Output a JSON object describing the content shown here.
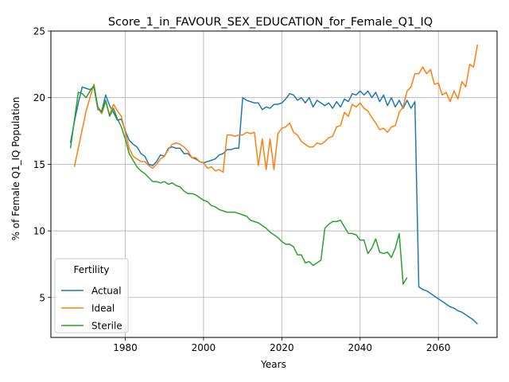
{
  "chart_data": {
    "type": "line",
    "title": "Score_1_in_FAVOUR_SEX_EDUCATION_for_Female_Q1_IQ",
    "xlabel": "Years",
    "ylabel": "% of Female Q1_IQ Population",
    "xlim": [
      1961,
      2075
    ],
    "ylim": [
      2,
      25
    ],
    "xticks": [
      1980,
      2000,
      2020,
      2040,
      2060
    ],
    "yticks": [
      5,
      10,
      15,
      20,
      25
    ],
    "grid": true,
    "legend": {
      "title": "Fertility",
      "position": "lower-left"
    },
    "series": [
      {
        "name": "Actual",
        "color": "#1f77b4",
        "points": [
          [
            1966,
            16.6
          ],
          [
            1967,
            18.2
          ],
          [
            1968,
            19.6
          ],
          [
            1969,
            20.8
          ],
          [
            1970,
            20.7
          ],
          [
            1971,
            20.6
          ],
          [
            1972,
            20.8
          ],
          [
            1973,
            19.1
          ],
          [
            1974,
            19.0
          ],
          [
            1975,
            20.2
          ],
          [
            1976,
            19.4
          ],
          [
            1977,
            18.9
          ],
          [
            1978,
            18.3
          ],
          [
            1979,
            18.4
          ],
          [
            1980,
            17.5
          ],
          [
            1981,
            16.8
          ],
          [
            1982,
            16.5
          ],
          [
            1983,
            16.3
          ],
          [
            1984,
            15.8
          ],
          [
            1985,
            15.6
          ],
          [
            1986,
            15.0
          ],
          [
            1987,
            14.9
          ],
          [
            1988,
            15.2
          ],
          [
            1989,
            15.7
          ],
          [
            1990,
            15.6
          ],
          [
            1991,
            16.2
          ],
          [
            1992,
            16.3
          ],
          [
            1993,
            16.2
          ],
          [
            1994,
            16.2
          ],
          [
            1995,
            15.8
          ],
          [
            1996,
            15.8
          ],
          [
            1997,
            15.5
          ],
          [
            1998,
            15.4
          ],
          [
            1999,
            15.2
          ],
          [
            2000,
            15.1
          ],
          [
            2001,
            15.2
          ],
          [
            2002,
            15.3
          ],
          [
            2003,
            15.4
          ],
          [
            2004,
            15.7
          ],
          [
            2005,
            15.8
          ],
          [
            2006,
            16.1
          ],
          [
            2007,
            16.1
          ],
          [
            2008,
            16.2
          ],
          [
            2009,
            16.2
          ],
          [
            2010,
            20.0
          ],
          [
            2011,
            19.8
          ],
          [
            2012,
            19.7
          ],
          [
            2013,
            19.6
          ],
          [
            2014,
            19.6
          ],
          [
            2015,
            19.1
          ],
          [
            2016,
            19.3
          ],
          [
            2017,
            19.2
          ],
          [
            2018,
            19.5
          ],
          [
            2019,
            19.5
          ],
          [
            2020,
            19.6
          ],
          [
            2021,
            19.9
          ],
          [
            2022,
            20.3
          ],
          [
            2023,
            20.2
          ],
          [
            2024,
            19.8
          ],
          [
            2025,
            20.0
          ],
          [
            2026,
            19.6
          ],
          [
            2027,
            20.0
          ],
          [
            2028,
            19.3
          ],
          [
            2029,
            19.8
          ],
          [
            2030,
            19.6
          ],
          [
            2031,
            19.4
          ],
          [
            2032,
            19.6
          ],
          [
            2033,
            19.2
          ],
          [
            2034,
            19.7
          ],
          [
            2035,
            19.3
          ],
          [
            2036,
            19.9
          ],
          [
            2037,
            19.7
          ],
          [
            2038,
            20.3
          ],
          [
            2039,
            20.2
          ],
          [
            2040,
            20.5
          ],
          [
            2041,
            20.2
          ],
          [
            2042,
            20.5
          ],
          [
            2043,
            20.0
          ],
          [
            2044,
            20.4
          ],
          [
            2045,
            19.7
          ],
          [
            2046,
            20.2
          ],
          [
            2047,
            19.4
          ],
          [
            2048,
            20.0
          ],
          [
            2049,
            19.3
          ],
          [
            2050,
            19.8
          ],
          [
            2051,
            19.2
          ],
          [
            2052,
            19.8
          ],
          [
            2053,
            19.2
          ],
          [
            2054,
            19.7
          ],
          [
            2055,
            5.8
          ],
          [
            2056,
            5.6
          ],
          [
            2057,
            5.5
          ],
          [
            2058,
            5.3
          ],
          [
            2059,
            5.1
          ],
          [
            2060,
            4.9
          ],
          [
            2061,
            4.7
          ],
          [
            2062,
            4.5
          ],
          [
            2063,
            4.3
          ],
          [
            2064,
            4.2
          ],
          [
            2065,
            4.0
          ],
          [
            2066,
            3.9
          ],
          [
            2067,
            3.7
          ],
          [
            2068,
            3.5
          ],
          [
            2069,
            3.3
          ],
          [
            2070,
            3.0
          ]
        ]
      },
      {
        "name": "Ideal",
        "color": "#ff7f0e",
        "points": [
          [
            1967,
            14.8
          ],
          [
            1968,
            16.2
          ],
          [
            1969,
            17.6
          ],
          [
            1970,
            19.0
          ],
          [
            1971,
            20.0
          ],
          [
            1972,
            21.0
          ],
          [
            1973,
            19.2
          ],
          [
            1974,
            18.8
          ],
          [
            1975,
            19.7
          ],
          [
            1976,
            18.7
          ],
          [
            1977,
            19.5
          ],
          [
            1978,
            19.0
          ],
          [
            1979,
            18.6
          ],
          [
            1980,
            17.4
          ],
          [
            1981,
            16.2
          ],
          [
            1982,
            15.6
          ],
          [
            1983,
            15.4
          ],
          [
            1984,
            15.2
          ],
          [
            1985,
            15.2
          ],
          [
            1986,
            14.9
          ],
          [
            1987,
            14.7
          ],
          [
            1988,
            15.0
          ],
          [
            1989,
            15.4
          ],
          [
            1990,
            15.6
          ],
          [
            1991,
            16.1
          ],
          [
            1992,
            16.5
          ],
          [
            1993,
            16.6
          ],
          [
            1994,
            16.5
          ],
          [
            1995,
            16.3
          ],
          [
            1996,
            16.0
          ],
          [
            1997,
            15.5
          ],
          [
            1998,
            15.5
          ],
          [
            1999,
            15.2
          ],
          [
            2000,
            15.1
          ],
          [
            2001,
            14.7
          ],
          [
            2002,
            14.8
          ],
          [
            2003,
            14.5
          ],
          [
            2004,
            14.6
          ],
          [
            2005,
            14.4
          ],
          [
            2006,
            17.2
          ],
          [
            2007,
            17.2
          ],
          [
            2008,
            17.1
          ],
          [
            2009,
            17.2
          ],
          [
            2010,
            17.2
          ],
          [
            2011,
            17.4
          ],
          [
            2012,
            17.3
          ],
          [
            2013,
            17.4
          ],
          [
            2014,
            14.9
          ],
          [
            2015,
            16.9
          ],
          [
            2016,
            14.6
          ],
          [
            2017,
            16.9
          ],
          [
            2018,
            14.6
          ],
          [
            2019,
            17.3
          ],
          [
            2020,
            17.7
          ],
          [
            2021,
            17.8
          ],
          [
            2022,
            18.1
          ],
          [
            2023,
            17.4
          ],
          [
            2024,
            17.2
          ],
          [
            2025,
            16.7
          ],
          [
            2026,
            16.5
          ],
          [
            2027,
            16.3
          ],
          [
            2028,
            16.3
          ],
          [
            2029,
            16.6
          ],
          [
            2030,
            16.5
          ],
          [
            2031,
            16.7
          ],
          [
            2032,
            17.0
          ],
          [
            2033,
            17.1
          ],
          [
            2034,
            17.8
          ],
          [
            2035,
            17.9
          ],
          [
            2036,
            18.9
          ],
          [
            2037,
            18.6
          ],
          [
            2038,
            19.5
          ],
          [
            2039,
            19.3
          ],
          [
            2040,
            19.6
          ],
          [
            2041,
            19.2
          ],
          [
            2042,
            19.0
          ],
          [
            2043,
            18.5
          ],
          [
            2044,
            18.1
          ],
          [
            2045,
            17.6
          ],
          [
            2046,
            17.7
          ],
          [
            2047,
            17.4
          ],
          [
            2048,
            17.8
          ],
          [
            2049,
            17.9
          ],
          [
            2050,
            18.9
          ],
          [
            2051,
            19.3
          ],
          [
            2052,
            20.5
          ],
          [
            2053,
            20.8
          ],
          [
            2054,
            21.8
          ],
          [
            2055,
            21.8
          ],
          [
            2056,
            22.3
          ],
          [
            2057,
            21.8
          ],
          [
            2058,
            22.1
          ],
          [
            2059,
            21.0
          ],
          [
            2060,
            21.1
          ],
          [
            2061,
            20.2
          ],
          [
            2062,
            20.4
          ],
          [
            2063,
            19.7
          ],
          [
            2064,
            20.5
          ],
          [
            2065,
            19.9
          ],
          [
            2066,
            21.2
          ],
          [
            2067,
            20.8
          ],
          [
            2068,
            22.5
          ],
          [
            2069,
            22.3
          ],
          [
            2070,
            24.0
          ]
        ]
      },
      {
        "name": "Sterile",
        "color": "#2ca02c",
        "points": [
          [
            1966,
            16.2
          ],
          [
            1967,
            18.3
          ],
          [
            1968,
            20.4
          ],
          [
            1969,
            20.3
          ],
          [
            1970,
            20.0
          ],
          [
            1971,
            20.5
          ],
          [
            1972,
            20.9
          ],
          [
            1973,
            19.3
          ],
          [
            1974,
            18.9
          ],
          [
            1975,
            19.8
          ],
          [
            1976,
            18.6
          ],
          [
            1977,
            19.2
          ],
          [
            1978,
            18.4
          ],
          [
            1979,
            17.8
          ],
          [
            1980,
            16.9
          ],
          [
            1981,
            15.8
          ],
          [
            1982,
            15.3
          ],
          [
            1983,
            14.8
          ],
          [
            1984,
            14.5
          ],
          [
            1985,
            14.3
          ],
          [
            1986,
            14.0
          ],
          [
            1987,
            13.7
          ],
          [
            1988,
            13.7
          ],
          [
            1989,
            13.6
          ],
          [
            1990,
            13.7
          ],
          [
            1991,
            13.5
          ],
          [
            1992,
            13.6
          ],
          [
            1993,
            13.4
          ],
          [
            1994,
            13.3
          ],
          [
            1995,
            13.0
          ],
          [
            1996,
            12.8
          ],
          [
            1997,
            12.8
          ],
          [
            1998,
            12.7
          ],
          [
            1999,
            12.5
          ],
          [
            2000,
            12.3
          ],
          [
            2001,
            12.2
          ],
          [
            2002,
            11.9
          ],
          [
            2003,
            11.8
          ],
          [
            2004,
            11.6
          ],
          [
            2005,
            11.5
          ],
          [
            2006,
            11.4
          ],
          [
            2007,
            11.4
          ],
          [
            2008,
            11.4
          ],
          [
            2009,
            11.3
          ],
          [
            2010,
            11.2
          ],
          [
            2011,
            11.1
          ],
          [
            2012,
            10.8
          ],
          [
            2013,
            10.7
          ],
          [
            2014,
            10.6
          ],
          [
            2015,
            10.4
          ],
          [
            2016,
            10.2
          ],
          [
            2017,
            9.9
          ],
          [
            2018,
            9.7
          ],
          [
            2019,
            9.5
          ],
          [
            2020,
            9.2
          ],
          [
            2021,
            9.0
          ],
          [
            2022,
            9.0
          ],
          [
            2023,
            8.8
          ],
          [
            2024,
            8.2
          ],
          [
            2025,
            8.2
          ],
          [
            2026,
            7.6
          ],
          [
            2027,
            7.7
          ],
          [
            2028,
            7.4
          ],
          [
            2029,
            7.6
          ],
          [
            2030,
            7.8
          ],
          [
            2031,
            10.2
          ],
          [
            2032,
            10.5
          ],
          [
            2033,
            10.7
          ],
          [
            2034,
            10.7
          ],
          [
            2035,
            10.8
          ],
          [
            2036,
            10.3
          ],
          [
            2037,
            9.8
          ],
          [
            2038,
            9.8
          ],
          [
            2039,
            9.7
          ],
          [
            2040,
            9.3
          ],
          [
            2041,
            9.3
          ],
          [
            2042,
            8.3
          ],
          [
            2043,
            8.7
          ],
          [
            2044,
            9.4
          ],
          [
            2045,
            8.4
          ],
          [
            2046,
            8.3
          ],
          [
            2047,
            8.4
          ],
          [
            2048,
            8.0
          ],
          [
            2049,
            8.7
          ],
          [
            2050,
            9.8
          ],
          [
            2051,
            6.0
          ],
          [
            2052,
            6.5
          ]
        ]
      }
    ]
  }
}
